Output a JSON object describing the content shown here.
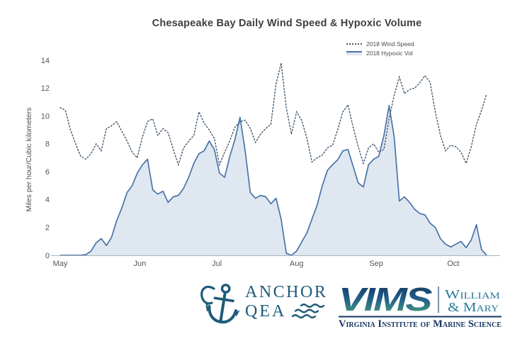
{
  "title": "Chesapeake Bay Daily Wind Speed & Hypoxic Volume",
  "legend": [
    {
      "label": "2018 Wind Speed",
      "style": "dotted"
    },
    {
      "label": "2018 Hypoxic Vol",
      "style": "solid"
    }
  ],
  "y_axis": {
    "label": "Miles per hour/Cubic kilometers",
    "ticks": [
      0,
      2,
      4,
      6,
      8,
      10,
      12,
      14
    ]
  },
  "x_axis": {
    "ticks": [
      {
        "label": "May",
        "day": 0
      },
      {
        "label": "Jun",
        "day": 31
      },
      {
        "label": "Jul",
        "day": 61
      },
      {
        "label": "Aug",
        "day": 92
      },
      {
        "label": "Sep",
        "day": 123
      },
      {
        "label": "Oct",
        "day": 153
      }
    ]
  },
  "chart_data": {
    "type": "line",
    "title": "Chesapeake Bay Daily Wind Speed & Hypoxic Volume",
    "xlabel": "",
    "ylabel": "Miles per hour/Cubic kilometers",
    "ylim": [
      0,
      14
    ],
    "x_start": "May 1, 2018",
    "x_end": "mid-October 2018",
    "x_unit": "days since May 1",
    "day_step": 2,
    "grid": false,
    "legend_position": "top-right inside plot",
    "series": [
      {
        "name": "2018 Wind Speed",
        "style": "dotted",
        "color": "#44586c",
        "values": [
          10.6,
          10.4,
          9.0,
          8.0,
          7.1,
          6.9,
          7.3,
          8.0,
          7.5,
          9.1,
          9.3,
          9.6,
          8.9,
          8.2,
          7.4,
          7.0,
          8.5,
          9.6,
          9.8,
          8.6,
          9.1,
          8.8,
          7.6,
          6.5,
          7.7,
          8.2,
          8.6,
          10.3,
          9.5,
          9.0,
          8.4,
          6.5,
          7.4,
          8.2,
          9.2,
          9.6,
          9.7,
          9.1,
          8.1,
          8.7,
          9.1,
          9.4,
          12.3,
          13.8,
          10.6,
          8.7,
          10.3,
          9.7,
          8.4,
          6.7,
          7.0,
          7.2,
          7.7,
          7.9,
          9.0,
          10.3,
          10.8,
          9.2,
          7.8,
          6.6,
          7.7,
          8.0,
          7.4,
          7.6,
          9.8,
          11.5,
          12.8,
          11.6,
          11.9,
          12.0,
          12.4,
          12.9,
          12.4,
          10.3,
          8.6,
          7.5,
          7.9,
          7.8,
          7.4,
          6.6,
          7.8,
          9.4,
          10.4,
          11.6
        ]
      },
      {
        "name": "2018 Hypoxic Vol",
        "style": "area",
        "color": "#4a74a8",
        "fill_color": "#dfe7f1",
        "values": [
          0,
          0,
          0,
          0,
          0,
          0.05,
          0.3,
          0.9,
          1.2,
          0.7,
          1.3,
          2.5,
          3.4,
          4.5,
          5.0,
          5.9,
          6.5,
          6.9,
          4.7,
          4.4,
          4.6,
          3.8,
          4.2,
          4.3,
          4.8,
          5.6,
          6.6,
          7.3,
          7.5,
          8.2,
          7.6,
          5.9,
          5.6,
          7.1,
          8.3,
          9.9,
          7.5,
          4.5,
          4.1,
          4.3,
          4.2,
          3.7,
          4.1,
          2.6,
          0.15,
          0,
          0.3,
          0.95,
          1.6,
          2.6,
          3.6,
          5.0,
          6.1,
          6.5,
          6.85,
          7.5,
          7.6,
          6.4,
          5.2,
          4.9,
          6.5,
          6.9,
          7.1,
          8.6,
          10.75,
          8.5,
          3.9,
          4.2,
          3.8,
          3.3,
          3.0,
          2.9,
          2.3,
          2.0,
          1.2,
          0.8,
          0.6,
          0.8,
          1.0,
          0.55,
          1.1,
          2.2,
          0.4,
          0
        ]
      }
    ]
  },
  "colors": {
    "wind_line": "#44586c",
    "hypoxic_line": "#4a74a8",
    "hypoxic_fill": "#dfe7f1",
    "axis": "#a9b3bc",
    "tick_text": "#4f565c",
    "title_text": "#3f3f3f",
    "anchor_teal": "#1e5b79",
    "vims_navy": "#16365f",
    "wm_teal": "#2b7b9b"
  },
  "footer": {
    "anchor_logo": {
      "line1": "ANCHOR",
      "line2": "QEA"
    },
    "vims_logo": {
      "acronym": "VIMS",
      "college_line1": "William",
      "college_line2": "& Mary",
      "institute": "Virginia Institute of Marine Science"
    }
  }
}
